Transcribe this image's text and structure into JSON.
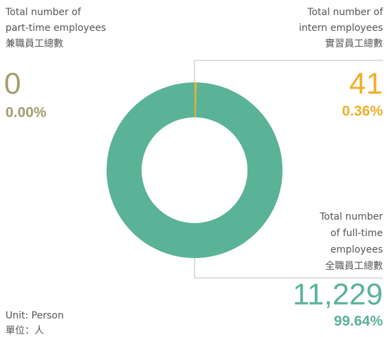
{
  "chart_data": {
    "type": "donut",
    "categories": [
      [
        "Total number of",
        "part-time employees",
        "兼職員工總數"
      ],
      [
        "Total number of",
        "intern employees",
        "實習員工總數"
      ],
      [
        "Total number",
        "of full-time",
        "employees",
        "全職員工總數"
      ]
    ],
    "values": [
      0,
      41,
      11229
    ],
    "value_labels": [
      "0",
      "41",
      "11,229"
    ],
    "percentages": [
      0,
      0.36,
      99.64
    ],
    "percentage_labels": [
      "0.00%",
      "0.36%",
      "99.64%"
    ],
    "colors": [
      "#a39e6e",
      "#f0ae2b",
      "#5ab396"
    ],
    "unit": [
      "Unit: Person",
      "單位：人"
    ]
  }
}
